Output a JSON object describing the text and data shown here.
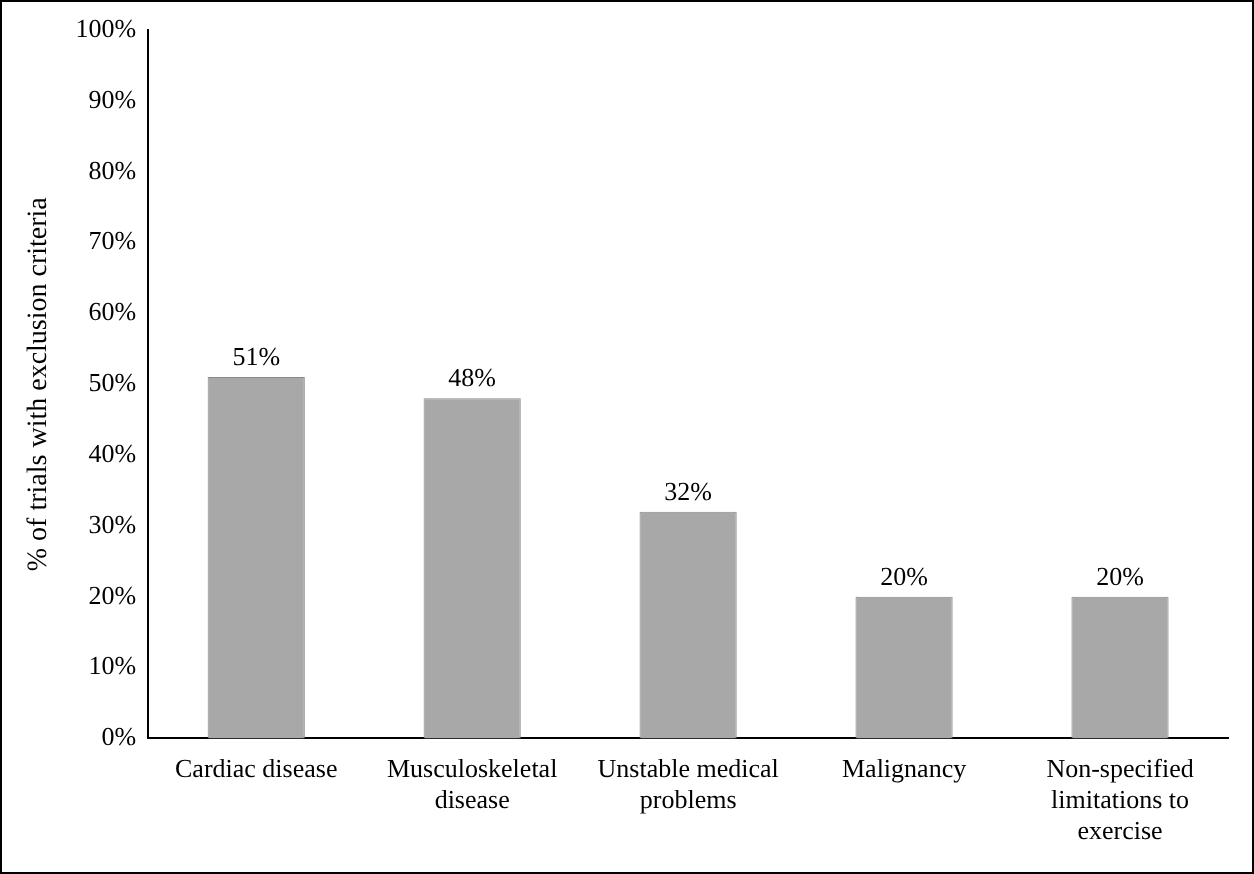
{
  "chart_data": {
    "type": "bar",
    "ylabel": "% of trials with exclusion criteria",
    "categories": [
      "Cardiac disease",
      "Musculoskeletal disease",
      "Unstable medical problems",
      "Malignancy",
      "Non-specified limitations to exercise"
    ],
    "values": [
      51,
      48,
      32,
      20,
      20
    ],
    "value_labels": [
      "51%",
      "48%",
      "32%",
      "20%",
      "20%"
    ],
    "color": "#a8a8a8",
    "ylim": [
      0,
      100
    ],
    "yticks": [
      {
        "value": 0,
        "label": "0%"
      },
      {
        "value": 10,
        "label": "10%"
      },
      {
        "value": 20,
        "label": "20%"
      },
      {
        "value": 30,
        "label": "30%"
      },
      {
        "value": 40,
        "label": "40%"
      },
      {
        "value": 50,
        "label": "50%"
      },
      {
        "value": 60,
        "label": "60%"
      },
      {
        "value": 70,
        "label": "70%"
      },
      {
        "value": 80,
        "label": "80%"
      },
      {
        "value": 90,
        "label": "90%"
      },
      {
        "value": 100,
        "label": "100%"
      }
    ],
    "grid": false,
    "legend": false
  }
}
